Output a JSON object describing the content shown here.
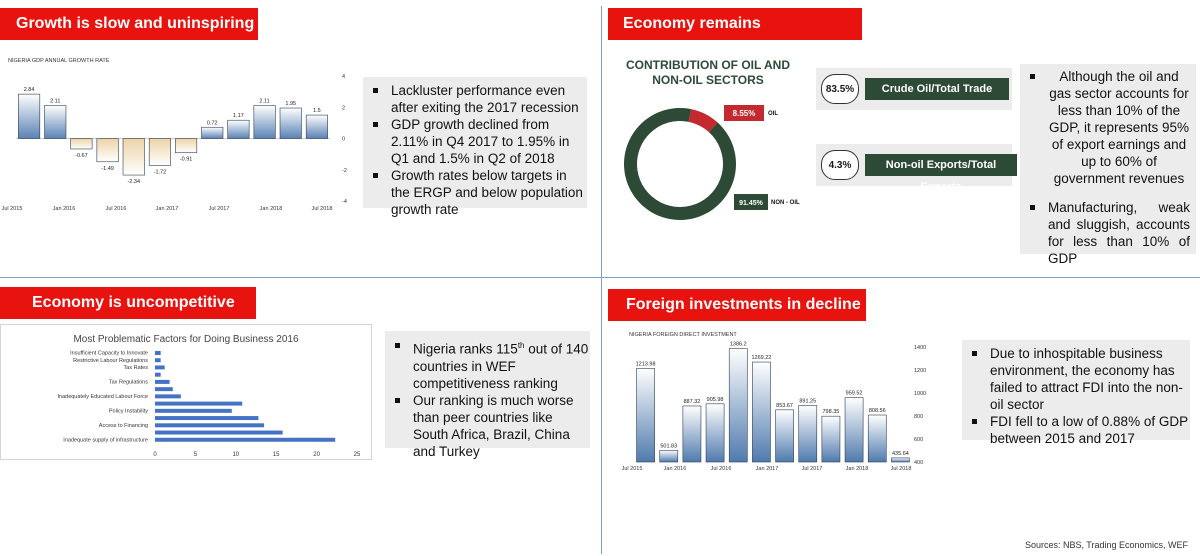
{
  "sections": {
    "growth": {
      "title": "Growth is slow and uninspiring"
    },
    "economy": {
      "title": "Economy remains undiversified"
    },
    "competitive": {
      "title": "Economy is uncompetitive"
    },
    "foreign": {
      "title": "Foreign investments in decline"
    }
  },
  "growth_bullets": [
    "Lackluster performance even after exiting the 2017 recession",
    "GDP growth declined from 2.11% in Q4 2017 to 1.95% in Q1 and 1.5% in Q2 of 2018",
    "Growth rates below targets in the ERGP and below population growth rate"
  ],
  "economy_bullets": [
    "Although the oil and gas sector accounts for less than 10% of the GDP, it represents 95% of export earnings and up to 60% of government revenues",
    "Manufacturing, weak and sluggish, accounts for less than 10% of GDP"
  ],
  "competitive_bullets": {
    "b1_pre": "Nigeria ranks 115",
    "b1_sup": "th",
    "b1_post": " out of 140 countries in WEF competitiveness ranking",
    "b2": "Our ranking is much worse than peer countries like South Africa, Brazil, China and Turkey"
  },
  "foreign_bullets": [
    "Due to inhospitable business environment, the economy has failed to attract FDI into the non-oil sector",
    "FDI fell to a low of 0.88% of GDP between 2015 and 2017"
  ],
  "pills": [
    {
      "value": "83.5%",
      "label": "Crude Oil/Total Trade"
    },
    {
      "value": "4.3%",
      "label": "Non-oil Exports/Total Exports"
    }
  ],
  "sources": "Sources: NBS, Trading Economics, WEF",
  "colors": {
    "banner": "#e8120e",
    "positive_bar": "#5a82b4",
    "negative_bar": "#ecd3a6",
    "donut_green": "#2d4a37",
    "donut_red": "#c3292e",
    "hbar_blue": "#4472c4"
  },
  "chart_data": [
    {
      "type": "bar",
      "title": "NIGERIA GDP ANNUAL GROWTH RATE",
      "values": [
        2.84,
        2.11,
        -0.67,
        -1.49,
        -2.34,
        -1.72,
        -0.91,
        0.72,
        1.17,
        2.11,
        1.95,
        1.5
      ],
      "value_labels": [
        "2.84",
        "2.11",
        "-0.67",
        "-1.49",
        "-2.34",
        "-1.72",
        "-0.91",
        "0.72",
        "1.17",
        "2.11",
        "1.95",
        "1.5"
      ],
      "x_tick_labels": [
        "Jul 2015",
        "Jan 2016",
        "Jul 2016",
        "Jan 2017",
        "Jul 2017",
        "Jan 2018",
        "Jul 2018"
      ],
      "y_ticks": [
        4,
        2,
        0,
        -2,
        -4
      ],
      "ylim": [
        -4,
        4
      ]
    },
    {
      "type": "pie",
      "title": "CONTRIBUTION OF OIL AND NON-OIL SECTORS",
      "slices": [
        {
          "label": "OIL",
          "value": 8.55,
          "display": "8.55%"
        },
        {
          "label": "NON - OIL",
          "value": 91.45,
          "display": "91.45%"
        }
      ]
    },
    {
      "type": "bar",
      "orientation": "horizontal",
      "title": "Most Problematic Factors for Doing Business 2016",
      "categories": [
        "Insufficient Capacity to Innovate",
        "Restrictive Labour Regulations",
        "Tax Rates",
        "Tax Regulations",
        "Inadequately Educated Labour Force",
        "Policy Instability",
        "Access to Financing",
        "Inadequate supply of infrastructure"
      ],
      "values": [
        0.7,
        0.7,
        1.2,
        1.8,
        3.2,
        9.5,
        13.5,
        22.3
      ],
      "x_ticks": [
        "0",
        "5",
        "10",
        "15",
        "20",
        "25"
      ],
      "xlim": [
        0,
        25
      ],
      "extra_values": [
        0.7,
        2.2,
        10.8,
        12.8,
        15.8
      ]
    },
    {
      "type": "bar",
      "title": "NIGERIA FOREIGN DIRECT INVESTMENT",
      "values": [
        1213.98,
        501.83,
        887.32,
        905.98,
        1386.2,
        1269.22,
        853.67,
        891.25,
        798.35,
        959.52,
        808.56,
        435.64
      ],
      "value_labels": [
        "1213.98",
        "501.83",
        "887.32",
        "905.98",
        "1386.2",
        "1269.22",
        "853.67",
        "891.25",
        "798.35",
        "959.52",
        "808.56",
        "435.64"
      ],
      "x_tick_labels": [
        "Jul 2015",
        "Jan 2016",
        "Jul 2016",
        "Jan 2017",
        "Jul 2017",
        "Jan 2018",
        "Jul 2018"
      ],
      "y_ticks": [
        1400,
        1200,
        1000,
        800,
        600,
        400
      ],
      "ylim": [
        400,
        1400
      ]
    }
  ]
}
